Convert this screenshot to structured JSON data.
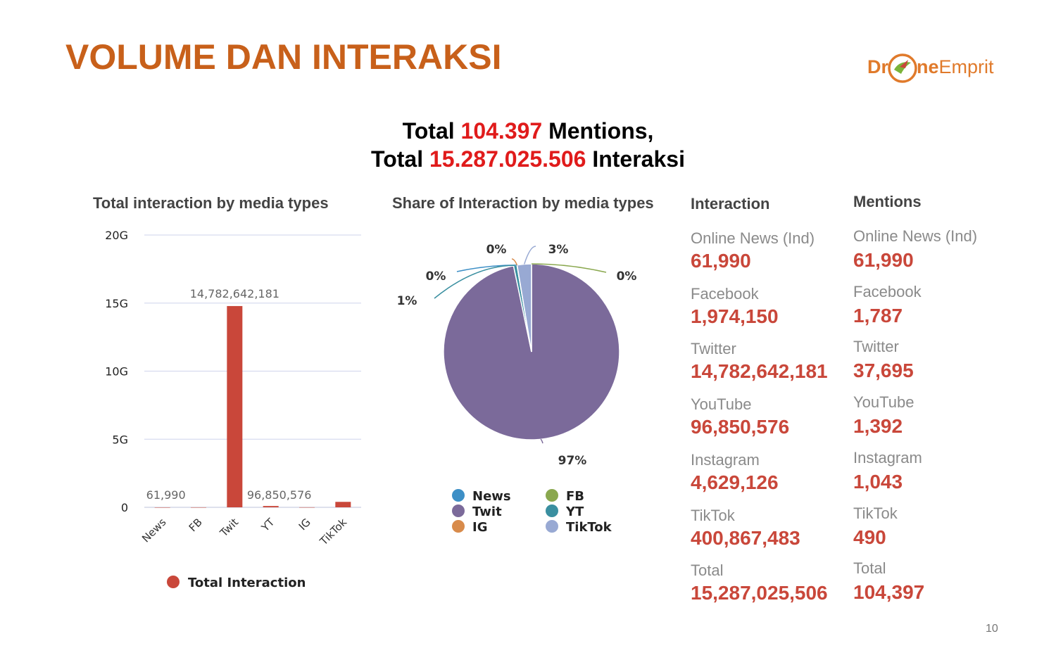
{
  "slide": {
    "title": "VOLUME DAN INTERAKSI",
    "page_number": "10",
    "logo": {
      "part1": "Dr",
      "part2": "ne",
      "part3": "Emprit",
      "icon": "drone-bird-logo-icon"
    }
  },
  "headline": {
    "line1_prefix": "Total",
    "line1_number": "104.397",
    "line1_suffix": "Mentions,",
    "line2_prefix": "Total",
    "line2_number": "15.287.025.506",
    "line2_suffix": "Interaksi",
    "highlight_color": "#e01b1b"
  },
  "chart_data": [
    {
      "type": "bar",
      "title": "Total interaction by media types",
      "categories": [
        "News",
        "FB",
        "Twit",
        "YT",
        "IG",
        "TikTok"
      ],
      "series": [
        {
          "name": "Total Interaction",
          "values": [
            61990,
            1974150,
            14782642181,
            96850576,
            4629126,
            400867483
          ],
          "color": "#c9473a"
        }
      ],
      "data_labels": [
        "61,990",
        "14,782,642,181",
        "96,850,576"
      ],
      "yticks": [
        "0",
        "5G",
        "10G",
        "15G",
        "20G"
      ],
      "ylim": [
        0,
        20000000000
      ],
      "grid": true,
      "legend": "bottom"
    },
    {
      "type": "pie",
      "title": "Share of Interaction by media types",
      "slices": [
        {
          "name": "News",
          "value": 0.0004,
          "label": "0%",
          "color": "#3d8fc6"
        },
        {
          "name": "FB",
          "value": 0.013,
          "label": "0%",
          "color": "#8aa84f"
        },
        {
          "name": "Twit",
          "value": 96.7,
          "label": "97%",
          "color": "#7b6a9a"
        },
        {
          "name": "YT",
          "value": 0.63,
          "label": "1%",
          "color": "#3a8fa0"
        },
        {
          "name": "IG",
          "value": 0.03,
          "label": "0%",
          "color": "#d88b4b"
        },
        {
          "name": "TikTok",
          "value": 2.62,
          "label": "3%",
          "color": "#98a9d3"
        }
      ],
      "legend": "bottom"
    }
  ],
  "interaction": {
    "title": "Interaction",
    "items": [
      {
        "label": "Online News (Ind)",
        "value": "61,990"
      },
      {
        "label": "Facebook",
        "value": "1,974,150"
      },
      {
        "label": "Twitter",
        "value": "14,782,642,181"
      },
      {
        "label": "YouTube",
        "value": "96,850,576"
      },
      {
        "label": "Instagram",
        "value": "4,629,126"
      },
      {
        "label": "TikTok",
        "value": "400,867,483"
      },
      {
        "label": "Total",
        "value": "15,287,025,506"
      }
    ]
  },
  "mentions": {
    "title": "Mentions",
    "items": [
      {
        "label": "Online News (Ind)",
        "value": "61,990"
      },
      {
        "label": "Facebook",
        "value": "1,787"
      },
      {
        "label": "Twitter",
        "value": "37,695"
      },
      {
        "label": "YouTube",
        "value": "1,392"
      },
      {
        "label": "Instagram",
        "value": "1,043"
      },
      {
        "label": "TikTok",
        "value": "490"
      },
      {
        "label": "Total",
        "value": "104,397"
      }
    ]
  }
}
